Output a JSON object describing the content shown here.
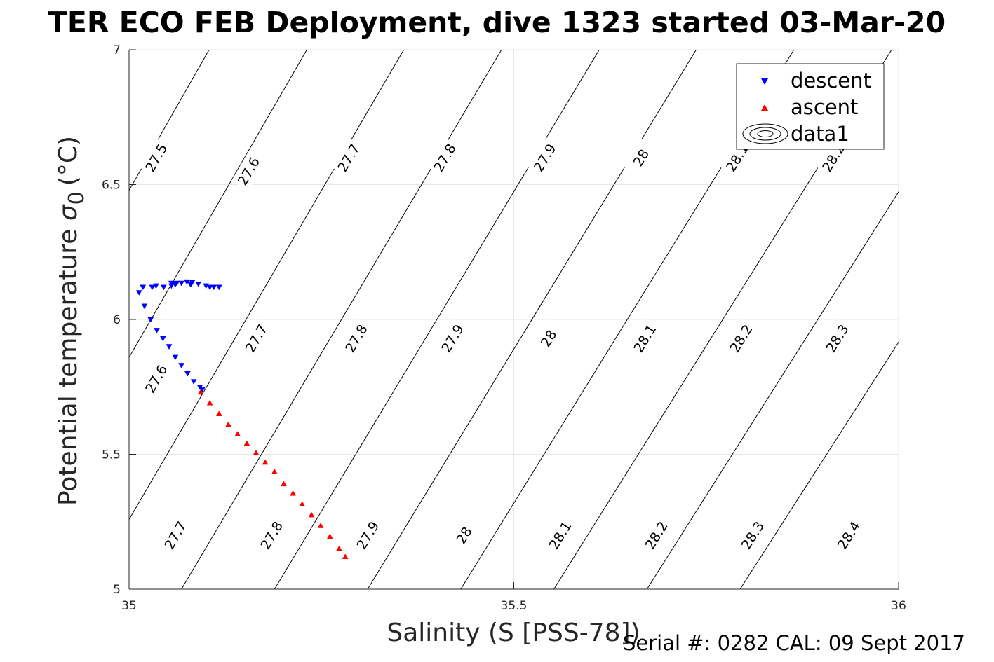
{
  "chart_data": {
    "type": "scatter",
    "title": "TER ECO FEB Deployment, dive 1323 started 03-Mar-20",
    "xlabel": "Salinity (S [PSS-78])",
    "ylabel": "Potential temperature",
    "ylabel_symbol": "σ",
    "ylabel_sub": "0",
    "ylabel_unit": "(°C)",
    "xlim": [
      35,
      36
    ],
    "ylim": [
      5,
      7
    ],
    "xticks": [
      35,
      35.5,
      36
    ],
    "xtick_labels": [
      "35",
      "35.5",
      "36"
    ],
    "yticks": [
      5,
      5.5,
      6,
      6.5,
      7
    ],
    "ytick_labels": [
      "5",
      "5.5",
      "6",
      "6.5",
      "7"
    ],
    "grid": true,
    "legend_position": "top-right",
    "contours": [
      {
        "level": "27.5",
        "x_at_ymin": 34.705,
        "x_at_ymax": 35.104,
        "label_points": [
          [
            35.035,
            6.6
          ]
        ]
      },
      {
        "level": "27.6",
        "x_at_ymin": 34.826,
        "x_at_ymax": 35.231,
        "label_points": [
          [
            35.035,
            5.78
          ],
          [
            35.155,
            6.55
          ]
        ]
      },
      {
        "level": "27.7",
        "x_at_ymin": 34.947,
        "x_at_ymax": 35.357,
        "label_points": [
          [
            35.06,
            5.2
          ],
          [
            35.165,
            5.93
          ],
          [
            35.285,
            6.6
          ]
        ]
      },
      {
        "level": "27.8",
        "x_at_ymin": 35.068,
        "x_at_ymax": 35.484,
        "label_points": [
          [
            35.185,
            5.2
          ],
          [
            35.295,
            5.93
          ],
          [
            35.41,
            6.6
          ]
        ]
      },
      {
        "level": "27.9",
        "x_at_ymin": 35.189,
        "x_at_ymax": 35.611,
        "label_points": [
          [
            35.31,
            5.2
          ],
          [
            35.42,
            5.93
          ],
          [
            35.54,
            6.6
          ]
        ]
      },
      {
        "level": "28",
        "x_at_ymin": 35.31,
        "x_at_ymax": 35.737,
        "label_points": [
          [
            35.435,
            5.2
          ],
          [
            35.545,
            5.93
          ],
          [
            35.665,
            6.6
          ]
        ]
      },
      {
        "level": "28.1",
        "x_at_ymin": 35.431,
        "x_at_ymax": 35.864,
        "label_points": [
          [
            35.56,
            5.2
          ],
          [
            35.67,
            5.93
          ],
          [
            35.79,
            6.6
          ]
        ]
      },
      {
        "level": "28.2",
        "x_at_ymin": 35.552,
        "x_at_ymax": 35.991,
        "label_points": [
          [
            35.685,
            5.2
          ],
          [
            35.795,
            5.93
          ],
          [
            35.915,
            6.6
          ]
        ]
      },
      {
        "level": "28.3",
        "x_at_ymin": 35.673,
        "x_at_ymax": 36.117,
        "label_points": [
          [
            35.81,
            5.2
          ],
          [
            35.92,
            5.93
          ]
        ]
      },
      {
        "level": "28.4",
        "x_at_ymin": 35.794,
        "x_at_ymax": 36.244,
        "label_points": [
          [
            35.935,
            5.2
          ]
        ]
      }
    ],
    "series": [
      {
        "name": "descent",
        "marker": "triangle-down",
        "color": "#0000ff",
        "x": [
          35.105,
          35.08,
          35.055,
          35.035,
          35.018,
          35.03,
          35.045,
          35.055,
          35.06,
          35.062,
          35.068,
          35.075,
          35.082,
          35.09,
          35.1,
          35.11,
          35.117,
          35.013,
          35.02,
          35.028,
          35.036,
          35.044,
          35.052,
          35.06,
          35.068,
          35.076,
          35.084,
          35.092,
          35.095
        ],
        "y": [
          6.12,
          6.13,
          6.135,
          6.125,
          6.12,
          6.12,
          6.12,
          6.125,
          6.13,
          6.135,
          6.135,
          6.14,
          6.138,
          6.132,
          6.125,
          6.12,
          6.12,
          6.1,
          6.05,
          6.0,
          5.96,
          5.93,
          5.9,
          5.86,
          5.83,
          5.8,
          5.77,
          5.75,
          5.74
        ]
      },
      {
        "name": "ascent",
        "marker": "triangle-up",
        "color": "#ff0000",
        "x": [
          35.093,
          35.105,
          35.117,
          35.129,
          35.141,
          35.153,
          35.165,
          35.177,
          35.189,
          35.201,
          35.213,
          35.225,
          35.237,
          35.249,
          35.261,
          35.273,
          35.281
        ],
        "y": [
          5.73,
          5.69,
          5.65,
          5.61,
          5.575,
          5.54,
          5.505,
          5.47,
          5.435,
          5.39,
          5.355,
          5.315,
          5.275,
          5.235,
          5.195,
          5.15,
          5.12
        ]
      }
    ],
    "legend": [
      {
        "label": "descent",
        "marker": "triangle-down",
        "color": "#0000ff"
      },
      {
        "label": "ascent",
        "marker": "triangle-up",
        "color": "#ff0000"
      },
      {
        "label": "data1",
        "marker": "contour",
        "color": "#000000"
      }
    ],
    "footer": "Serial #: 0282  CAL: 09 Sept 2017"
  }
}
